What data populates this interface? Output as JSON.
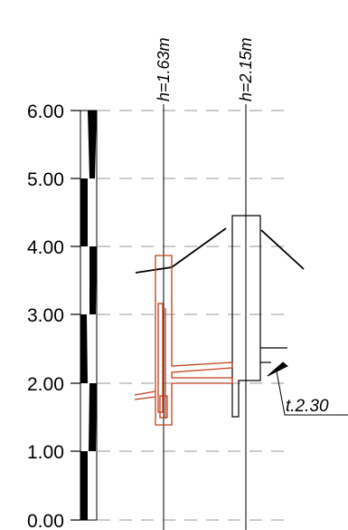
{
  "scale": {
    "labels": [
      "6.00",
      "5.00",
      "4.00",
      "3.00",
      "2.00",
      "1.00",
      "0.00"
    ]
  },
  "columns": [
    {
      "label": "h=1.63m"
    },
    {
      "label": "h=2.15m"
    }
  ],
  "annotation": {
    "label": "t.2.30"
  },
  "colors": {
    "ink": "#000000",
    "dash": "#999999",
    "red": "#c0401a"
  }
}
